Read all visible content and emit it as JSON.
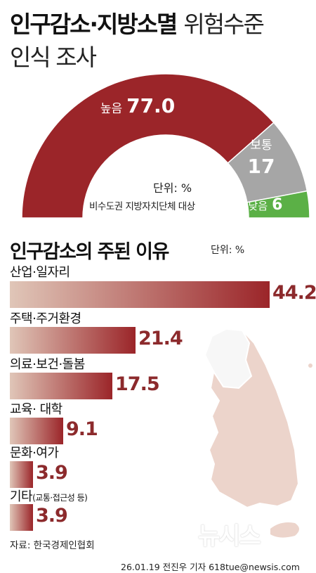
{
  "title": {
    "bold": "인구감소·지방소멸",
    "light": "위험수준",
    "line2": "인식 조사"
  },
  "gauge": {
    "unit_note": "단위: %",
    "target_note": "비수도권 지방자치단체 대상",
    "segments": [
      {
        "label": "높음",
        "value": 77.0,
        "value_text": "77.0",
        "color": "#9b2529"
      },
      {
        "label": "보통",
        "value": 17,
        "value_text": "17",
        "color": "#a6a6a6"
      },
      {
        "label": "낮음",
        "value": 6,
        "value_text": "6",
        "color": "#5bb046"
      }
    ]
  },
  "chart_data": {
    "type": "bar",
    "title": "인구감소의 주된 이유",
    "unit": "단위: %",
    "categories": [
      "산업·일자리",
      "주택·주거환경",
      "의료·보건·돌봄",
      "교육· 대학",
      "문화·여가",
      "기타"
    ],
    "category_notes": [
      "",
      "",
      "",
      "",
      "",
      "(교통·접근성 등)"
    ],
    "values": [
      44.2,
      21.4,
      17.5,
      9.1,
      3.9,
      3.9
    ],
    "value_labels": [
      "44.2",
      "21.4",
      "17.5",
      "9.1",
      "3.9",
      "3.9"
    ],
    "bar_color_start": "#e0c6b8",
    "bar_color_end": "#9b2529"
  },
  "source": "자료: 한국경제인협회",
  "watermark": "뉴시스",
  "credit": "26.01.19 전진우 기자 618tue@newsis.com"
}
